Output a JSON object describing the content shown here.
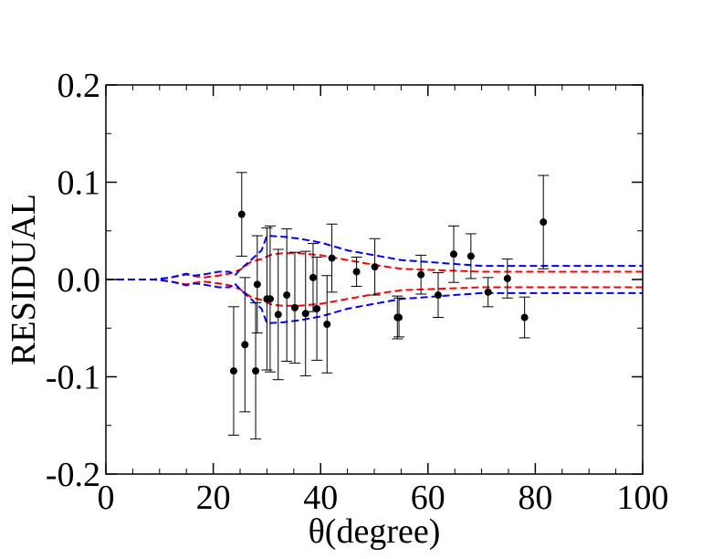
{
  "chart_data": {
    "type": "scatter",
    "title": "",
    "xlabel": "θ(degree)",
    "ylabel": "RESIDUAL",
    "xlim": [
      0,
      100
    ],
    "ylim": [
      -0.2,
      0.2
    ],
    "x_ticks": [
      0,
      20,
      40,
      60,
      80,
      100
    ],
    "x_tick_labels": [
      "0",
      "20",
      "40",
      "60",
      "80",
      "100"
    ],
    "y_ticks": [
      -0.2,
      -0.1,
      0.0,
      0.1,
      0.2
    ],
    "y_tick_labels": [
      "-0.2",
      "-0.1",
      "0.0",
      "0.1",
      "0.2"
    ],
    "grid": false,
    "legend": "none",
    "colors": {
      "points": "#000000",
      "inner_band": "#ff0000",
      "outer_band": "#0000ff"
    },
    "series": [
      {
        "type": "scatter_errorbar",
        "x": [
          23.8,
          25.3,
          25.9,
          27.9,
          28.2,
          30.0,
          30.6,
          32.1,
          33.7,
          35.2,
          37.2,
          38.6,
          39.3,
          41.2,
          42.1,
          46.7,
          50.1,
          54.3,
          54.6,
          58.7,
          61.9,
          64.8,
          68.0,
          71.2,
          74.8,
          78.0,
          81.5
        ],
        "y": [
          -0.094,
          0.067,
          -0.067,
          -0.094,
          -0.005,
          -0.02,
          -0.02,
          -0.036,
          -0.016,
          -0.029,
          -0.035,
          0.002,
          -0.03,
          -0.046,
          0.022,
          0.008,
          0.013,
          -0.039,
          -0.039,
          0.005,
          -0.016,
          0.026,
          0.024,
          -0.013,
          0.001,
          -0.039,
          0.059
        ],
        "err": [
          0.066,
          0.043,
          0.069,
          0.07,
          0.05,
          0.073,
          0.075,
          0.067,
          0.068,
          0.057,
          0.064,
          0.035,
          0.053,
          0.05,
          0.035,
          0.015,
          0.029,
          0.022,
          0.02,
          0.02,
          0.023,
          0.029,
          0.023,
          0.015,
          0.02,
          0.021,
          0.048
        ]
      },
      {
        "type": "band",
        "color": "#ff0000",
        "x": [
          0,
          9,
          12,
          15,
          18,
          21,
          23,
          25,
          27,
          29,
          31,
          33,
          36,
          40,
          45,
          50,
          55,
          60,
          65,
          70,
          80,
          90,
          100
        ],
        "upper": [
          0,
          0,
          0.002,
          0.005,
          0.002,
          0.004,
          0.006,
          0.01,
          0.018,
          0.021,
          0.026,
          0.027,
          0.027,
          0.025,
          0.02,
          0.015,
          0.011,
          0.01,
          0.009,
          0.008,
          0.008,
          0.008,
          0.008
        ],
        "lower": [
          0,
          0,
          -0.002,
          -0.005,
          -0.002,
          -0.004,
          -0.006,
          -0.01,
          -0.018,
          -0.021,
          -0.026,
          -0.027,
          -0.027,
          -0.025,
          -0.02,
          -0.015,
          -0.011,
          -0.01,
          -0.009,
          -0.008,
          -0.008,
          -0.008,
          -0.008
        ]
      },
      {
        "type": "band",
        "color": "#0000ff",
        "x": [
          0,
          9,
          12,
          15,
          16.5,
          18,
          21,
          23,
          24,
          25,
          27,
          29,
          30,
          33,
          36,
          40,
          45,
          50,
          55,
          60,
          65,
          70,
          80,
          90,
          100
        ],
        "upper": [
          0,
          0,
          0.002,
          0.006,
          0.004,
          0.005,
          0.008,
          0.008,
          0.004,
          0.01,
          0.02,
          0.03,
          0.045,
          0.044,
          0.042,
          0.038,
          0.03,
          0.025,
          0.02,
          0.018,
          0.016,
          0.014,
          0.014,
          0.014,
          0.014
        ],
        "lower": [
          0,
          0,
          -0.002,
          -0.006,
          -0.004,
          -0.005,
          -0.008,
          -0.008,
          -0.004,
          -0.01,
          -0.02,
          -0.03,
          -0.045,
          -0.044,
          -0.042,
          -0.038,
          -0.03,
          -0.025,
          -0.02,
          -0.018,
          -0.016,
          -0.014,
          -0.014,
          -0.014,
          -0.014
        ]
      }
    ]
  }
}
